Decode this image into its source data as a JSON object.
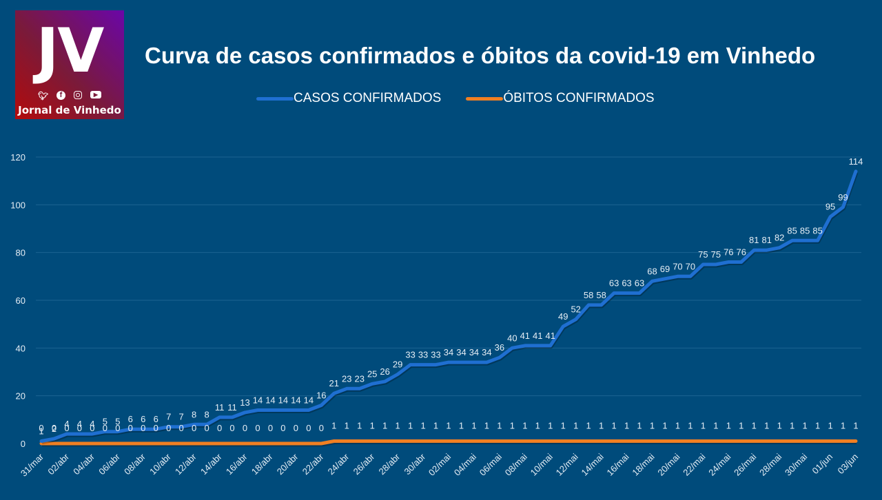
{
  "logo": {
    "initials": "JV",
    "name": "Jornal de Vinhedo",
    "icons": [
      "twitter-icon",
      "facebook-icon",
      "instagram-icon",
      "youtube-icon"
    ]
  },
  "chart_data": {
    "type": "line",
    "title": "Curva de casos confirmados e óbitos da covid-19 em Vinhedo",
    "xlabel": "",
    "ylabel": "",
    "ylim": [
      0,
      120
    ],
    "yticks": [
      0,
      20,
      40,
      60,
      80,
      100,
      120
    ],
    "grid": true,
    "legend_position": "top-center",
    "x": [
      "31/mar",
      "01/abr",
      "02/abr",
      "03/abr",
      "04/abr",
      "05/abr",
      "06/abr",
      "07/abr",
      "08/abr",
      "09/abr",
      "10/abr",
      "11/abr",
      "12/abr",
      "13/abr",
      "14/abr",
      "15/abr",
      "16/abr",
      "17/abr",
      "18/abr",
      "19/abr",
      "20/abr",
      "21/abr",
      "22/abr",
      "23/abr",
      "24/abr",
      "25/abr",
      "26/abr",
      "27/abr",
      "28/abr",
      "29/abr",
      "30/abr",
      "01/mai",
      "02/mai",
      "03/mai",
      "04/mai",
      "05/mai",
      "06/mai",
      "07/mai",
      "08/mai",
      "09/mai",
      "10/mai",
      "11/mai",
      "12/mai",
      "13/mai",
      "14/mai",
      "15/mai",
      "16/mai",
      "17/mai",
      "18/mai",
      "19/mai",
      "20/mai",
      "21/mai",
      "22/mai",
      "23/mai",
      "24/mai",
      "25/mai",
      "26/mai",
      "27/mai",
      "28/mai",
      "29/mai",
      "30/mai",
      "31/mai",
      "01/jun",
      "02/jun",
      "03/jun"
    ],
    "x_tick_labels_shown": [
      "31/mar",
      "02/abr",
      "04/abr",
      "06/abr",
      "08/abr",
      "10/abr",
      "12/abr",
      "14/abr",
      "16/abr",
      "18/abr",
      "20/abr",
      "22/abr",
      "24/abr",
      "26/abr",
      "28/abr",
      "30/abr",
      "02/mai",
      "04/mai",
      "06/mai",
      "08/mai",
      "10/mai",
      "12/mai",
      "14/mai",
      "16/mai",
      "18/mai",
      "20/mai",
      "22/mai",
      "24/mai",
      "26/mai",
      "28/mai",
      "30/mai",
      "01/jun",
      "03/jun"
    ],
    "series": [
      {
        "name": "CASOS CONFIRMADOS",
        "color": "#1f6fd1",
        "values": [
          1,
          2,
          4,
          4,
          4,
          5,
          5,
          6,
          6,
          6,
          7,
          7,
          8,
          8,
          11,
          11,
          13,
          14,
          14,
          14,
          14,
          14,
          16,
          21,
          23,
          23,
          25,
          26,
          29,
          33,
          33,
          33,
          34,
          34,
          34,
          34,
          36,
          40,
          41,
          41,
          41,
          49,
          52,
          58,
          58,
          63,
          63,
          63,
          68,
          69,
          70,
          70,
          75,
          75,
          76,
          76,
          81,
          81,
          82,
          85,
          85,
          85,
          95,
          99,
          114
        ]
      },
      {
        "name": "ÓBITOS CONFIRMADOS",
        "color": "#f07f22",
        "values": [
          0,
          0,
          0,
          0,
          0,
          0,
          0,
          0,
          0,
          0,
          0,
          0,
          0,
          0,
          0,
          0,
          0,
          0,
          0,
          0,
          0,
          0,
          0,
          1,
          1,
          1,
          1,
          1,
          1,
          1,
          1,
          1,
          1,
          1,
          1,
          1,
          1,
          1,
          1,
          1,
          1,
          1,
          1,
          1,
          1,
          1,
          1,
          1,
          1,
          1,
          1,
          1,
          1,
          1,
          1,
          1,
          1,
          1,
          1,
          1,
          1,
          1,
          1,
          1,
          1
        ]
      }
    ]
  }
}
